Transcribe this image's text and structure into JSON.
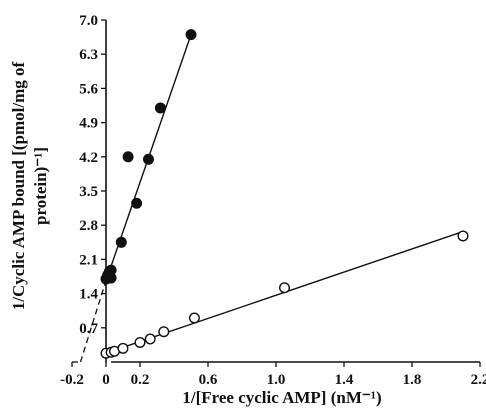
{
  "chart_data": {
    "type": "scatter",
    "xlabel": "1/[Free cyclic AMP] (nM⁻¹)",
    "ylabel_lines": [
      "1/Cyclic AMP bound [(pmol/mg of",
      "protein)⁻¹]"
    ],
    "xlim": [
      -0.2,
      2.2
    ],
    "ylim": [
      0,
      7.0
    ],
    "xticks": [
      "-0.2",
      "0",
      "0.2",
      "0.6",
      "1.0",
      "1.4",
      "1.8",
      "2.2"
    ],
    "xtick_values": [
      -0.2,
      0,
      0.2,
      0.6,
      1.0,
      1.4,
      1.8,
      2.2
    ],
    "yticks": [
      "0.7",
      "1.4",
      "2.1",
      "2.8",
      "3.5",
      "4.2",
      "4.9",
      "5.6",
      "6.3",
      "7.0"
    ],
    "ytick_values": [
      0.7,
      1.4,
      2.1,
      2.8,
      3.5,
      4.2,
      4.9,
      5.6,
      6.3,
      7.0
    ],
    "series": [
      {
        "marker": "filled-circle",
        "points": [
          {
            "x": 0.0,
            "y": 1.7
          },
          {
            "x": 0.01,
            "y": 1.78
          },
          {
            "x": 0.02,
            "y": 1.85
          },
          {
            "x": 0.03,
            "y": 1.88
          },
          {
            "x": 0.03,
            "y": 1.72
          },
          {
            "x": 0.02,
            "y": 1.72
          },
          {
            "x": 0.09,
            "y": 2.45
          },
          {
            "x": 0.13,
            "y": 4.2
          },
          {
            "x": 0.18,
            "y": 3.25
          },
          {
            "x": 0.25,
            "y": 4.15
          },
          {
            "x": 0.32,
            "y": 5.2
          },
          {
            "x": 0.5,
            "y": 6.7
          }
        ],
        "fit_line": {
          "x": [
            -0.006,
            0.5
          ],
          "y": [
            1.6,
            6.7
          ]
        },
        "extrapolation": {
          "x": [
            -0.15,
            -0.006
          ],
          "y": [
            0,
            1.6
          ]
        }
      },
      {
        "marker": "open-circle",
        "points": [
          {
            "x": 0.0,
            "y": 0.18
          },
          {
            "x": 0.03,
            "y": 0.2
          },
          {
            "x": 0.05,
            "y": 0.22
          },
          {
            "x": 0.1,
            "y": 0.28
          },
          {
            "x": 0.2,
            "y": 0.4
          },
          {
            "x": 0.26,
            "y": 0.47
          },
          {
            "x": 0.34,
            "y": 0.62
          },
          {
            "x": 0.52,
            "y": 0.9
          },
          {
            "x": 1.05,
            "y": 1.52
          },
          {
            "x": 2.1,
            "y": 2.58
          }
        ],
        "fit_line": {
          "x": [
            0.0,
            2.1
          ],
          "y": [
            0.18,
            2.67
          ]
        },
        "extrapolation": {
          "x": [
            -0.2,
            -0.15
          ],
          "y": [
            0,
            0
          ]
        }
      }
    ]
  }
}
